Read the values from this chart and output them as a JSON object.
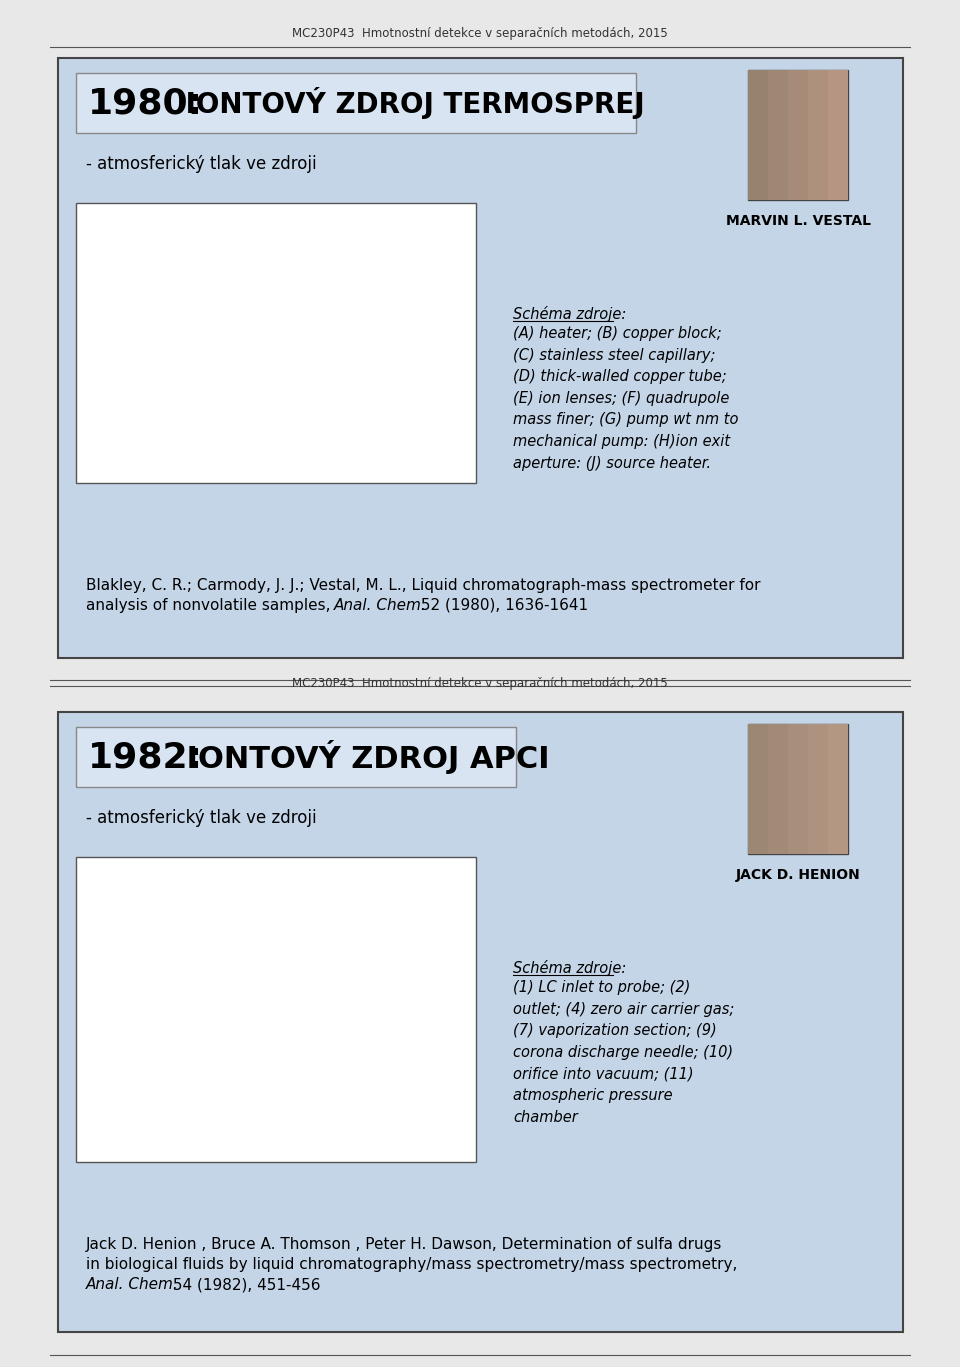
{
  "bg_color": "#e8e8e8",
  "slide_bg": "#c5d5e8",
  "header_text": "MC230P43  Hmotnostní detekce v separačních metodách, 2015",
  "slide1": {
    "title_num": "1980:",
    "title_rest": " IONTOVÝ ZDROJ TERMOSPREJ",
    "subtitle": "- atmosferický tlak ve zdroji",
    "person_name": "MARVIN L. VESTAL",
    "schema_title": "Schéma zdroje:",
    "schema_text": "(A) heater; (B) copper block;\n(C) stainless steel capillary;\n(D) thick-walled copper tube;\n(E) ion lenses; (F) quadrupole\nmass finer; (G) pump wt nm to\nmechanical pump: (H)ion exit\naperture: (J) source heater.",
    "ref_line1": "Blakley, C. R.; Carmody, J. J.; Vestal, M. L., Liquid chromatograph-mass spectrometer for",
    "ref_line2_normal": "analysis of nonvolatile samples, ",
    "ref_line2_italic": "Anal. Chem.",
    "ref_line2_end": " 52 (1980), 1636-1641"
  },
  "slide2": {
    "title_num": "1982:",
    "title_rest": " IONTOVÝ ZDROJ APCI",
    "subtitle": "- atmosferický tlak ve zdroji",
    "person_name": "JACK D. HENION",
    "schema_title": "Schéma zdroje:",
    "schema_text": "(1) LC inlet to probe; (2)\noutlet; (4) zero air carrier gas;\n(7) vaporization section; (9)\ncorona discharge needle; (10)\norifice into vacuum; (11)\natmospheric pressure\nchamber",
    "ref_line1": "Jack D. Henion , Bruce A. Thomson , Peter H. Dawson, Determination of sulfa drugs",
    "ref_line2": "in biological fluids by liquid chromatography/mass spectrometry/mass spectrometry,",
    "ref_line3_italic": "Anal. Chem.",
    "ref_line3_end": " 54 (1982), 451-456"
  }
}
